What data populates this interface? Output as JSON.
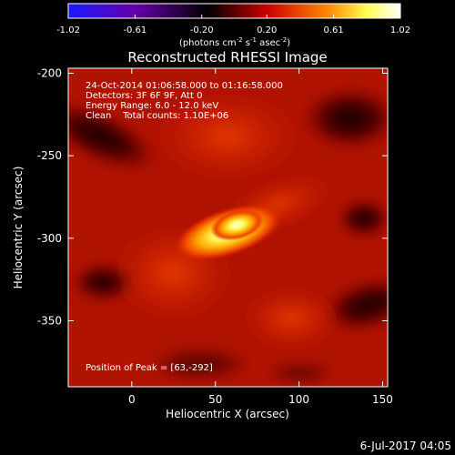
{
  "chart_data": {
    "type": "heatmap",
    "title": "Reconstructed RHESSI Image",
    "xlabel": "Heliocentric X (arcsec)",
    "ylabel": "Heliocentric Y (arcsec)",
    "xlim": [
      -38,
      153
    ],
    "ylim": [
      -390,
      -197
    ],
    "x_ticks": [
      0,
      50,
      100,
      150
    ],
    "y_ticks": [
      -200,
      -250,
      -300,
      -350
    ],
    "colorbar": {
      "range": [
        -1.02,
        1.02
      ],
      "tick_values": [
        -1.02,
        -0.61,
        -0.2,
        0.2,
        0.61,
        1.02
      ],
      "tick_labels": [
        "-1.02",
        "-0.61",
        "-0.20",
        "0.20",
        "0.61",
        "1.02"
      ],
      "units_label": "(photons cm",
      "units_exp1": "-2",
      "units_mid": " s",
      "units_exp2": "-1",
      "units_mid2": " asec",
      "units_exp3": "-2",
      "units_end": ")",
      "gradient_colors": [
        "#1a1aff",
        "#6600aa",
        "#000000",
        "#cc0000",
        "#ff8800",
        "#ffff55",
        "#ffffff"
      ]
    },
    "info_lines": [
      "24-Oct-2014 01:06:58.000 to 01:16:58.000",
      "Detectors: 3F 6F 9F, Att 0",
      "Energy Range: 6.0 - 12.0 keV",
      "Clean    Total counts: 1.10E+06"
    ],
    "peak_label": "Position of Peak = [63,-292]",
    "peak_position": [
      63,
      -292
    ],
    "colors": {
      "background_map": "#b01300",
      "peak": "#ffffe0"
    }
  },
  "footer": {
    "date": "6-Jul-2017 04:05"
  }
}
